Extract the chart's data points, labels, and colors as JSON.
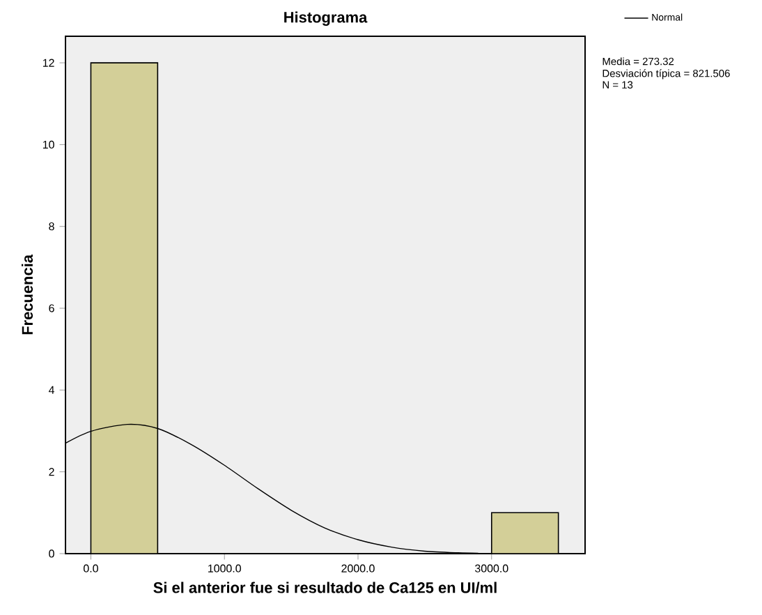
{
  "chart_data": {
    "type": "histogram",
    "title": "Histograma",
    "xlabel": "Si el anterior fue si resultado de Ca125 en UI/ml",
    "ylabel": "Frecuencia",
    "bins": [
      0,
      500,
      1000,
      1500,
      2000,
      2500,
      3000,
      3500
    ],
    "values": [
      12,
      0,
      0,
      0,
      0,
      0,
      1
    ],
    "color": "#d3cf98",
    "series": [
      {
        "name": "Normal",
        "type": "line",
        "color": "#000000",
        "x": [
          -190,
          0,
          273,
          500,
          750,
          1000,
          1250,
          1500,
          1750,
          2000,
          2250,
          2500,
          2750,
          2900
        ],
        "values": [
          2.7,
          2.99,
          3.16,
          3.06,
          2.67,
          2.16,
          1.59,
          1.06,
          0.63,
          0.34,
          0.16,
          0.06,
          0.02,
          0.01
        ]
      }
    ],
    "xlim": [
      -190,
      3700
    ],
    "ylim": [
      0,
      12.65
    ],
    "xticks": [
      {
        "value": 0,
        "label": "0.0"
      },
      {
        "value": 1000,
        "label": "1000.0"
      },
      {
        "value": 2000,
        "label": "2000.0"
      },
      {
        "value": 3000,
        "label": "3000.0"
      }
    ],
    "yticks": [
      0,
      2,
      4,
      6,
      8,
      10,
      12
    ],
    "legend": "top right",
    "annotations": [
      "Media = 273.32",
      "Desviación típica = 821.506",
      "N = 13"
    ]
  }
}
